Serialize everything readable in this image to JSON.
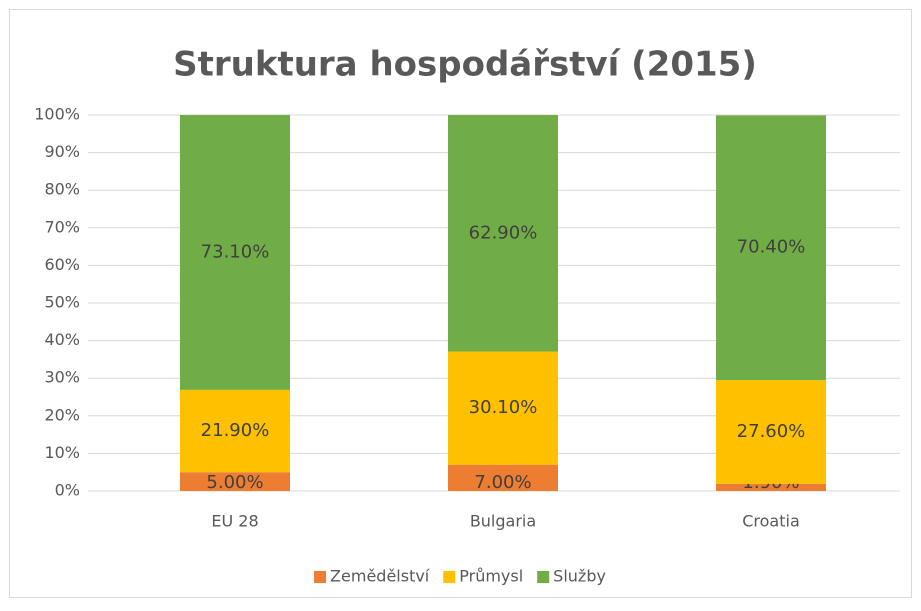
{
  "chart_data": {
    "type": "stacked_bar",
    "title": "Struktura hospodářství (2015)",
    "categories": [
      "EU 28",
      "Bulgaria",
      "Croatia"
    ],
    "series": [
      {
        "name": "Zemědělství",
        "color": "#ed7d31",
        "values": [
          5.0,
          7.0,
          1.9
        ],
        "value_labels": [
          "5.00%",
          "7.00%",
          "1.90%"
        ]
      },
      {
        "name": "Průmysl",
        "color": "#ffc000",
        "values": [
          21.9,
          30.1,
          27.6
        ],
        "value_labels": [
          "21.90%",
          "30.10%",
          "27.60%"
        ]
      },
      {
        "name": "Služby",
        "color": "#70ad47",
        "values": [
          73.1,
          62.9,
          70.4
        ],
        "value_labels": [
          "73.10%",
          "62.90%",
          "70.40%"
        ]
      }
    ],
    "ylim": [
      0,
      100
    ],
    "yticks": [
      {
        "value": 0,
        "label": "0%"
      },
      {
        "value": 10,
        "label": "10%"
      },
      {
        "value": 20,
        "label": "20%"
      },
      {
        "value": 30,
        "label": "30%"
      },
      {
        "value": 40,
        "label": "40%"
      },
      {
        "value": 50,
        "label": "50%"
      },
      {
        "value": 60,
        "label": "60%"
      },
      {
        "value": 70,
        "label": "70%"
      },
      {
        "value": 80,
        "label": "80%"
      },
      {
        "value": 90,
        "label": "90%"
      },
      {
        "value": 100,
        "label": "100%"
      }
    ],
    "grid": true,
    "legend": "bottom"
  }
}
